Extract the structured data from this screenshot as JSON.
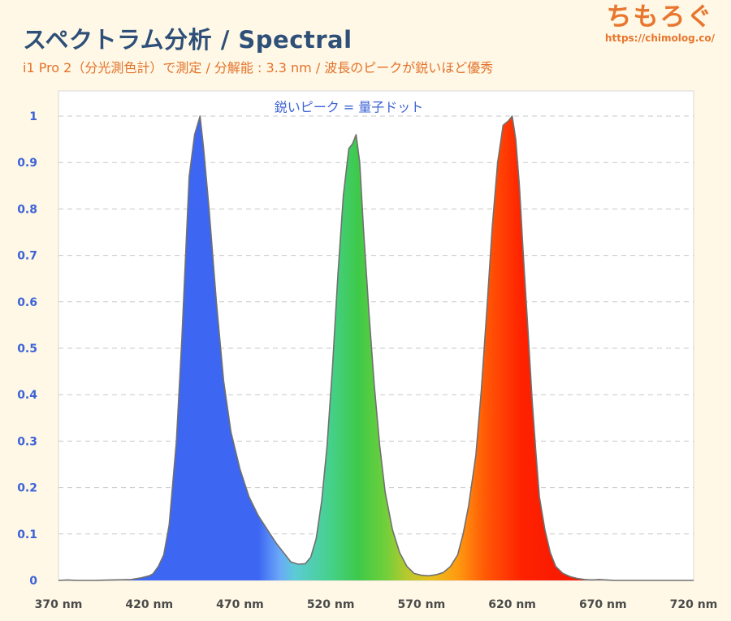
{
  "header": {
    "title": "スペクトラム分析 / Spectral",
    "subtitle": "i1 Pro 2（分光測色計）で測定 / 分解能 : 3.3 nm / 波長のピークが鋭いほど優秀"
  },
  "brand": {
    "logo_text": "ちもろぐ",
    "url": "https://chimolog.co/"
  },
  "chart_data": {
    "type": "area",
    "title": "",
    "xlabel": "",
    "ylabel": "",
    "xlim": [
      370,
      720
    ],
    "ylim": [
      0,
      1
    ],
    "grid": true,
    "grid_style": "dashed-horizontal",
    "legend": "none",
    "x_ticks": [
      370,
      420,
      470,
      520,
      570,
      620,
      670,
      720
    ],
    "x_tick_labels": [
      "370 nm",
      "420 nm",
      "470 nm",
      "520 nm",
      "570 nm",
      "620 nm",
      "670 nm",
      "720 nm"
    ],
    "y_ticks": [
      0,
      0.1,
      0.2,
      0.3,
      0.4,
      0.5,
      0.6,
      0.7,
      0.8,
      0.9,
      1
    ],
    "y_tick_labels": [
      "0",
      "0.1",
      "0.2",
      "0.3",
      "0.4",
      "0.5",
      "0.6",
      "0.7",
      "0.8",
      "0.9",
      "1"
    ],
    "annotation": {
      "text": "鋭いピーク = 量子ドット",
      "x": 530,
      "y": 1.02
    },
    "series": [
      {
        "x": [
          370,
          375,
          380,
          390,
          400,
          410,
          415,
          420,
          422,
          425,
          428,
          431,
          435,
          438,
          442,
          445,
          448,
          450,
          453,
          457,
          461,
          465,
          470,
          475,
          480,
          485,
          490,
          495,
          498,
          502,
          506,
          509,
          512,
          515,
          518,
          521,
          524,
          527,
          530,
          532,
          534,
          536,
          538,
          541,
          544,
          547,
          550,
          554,
          558,
          562,
          566,
          570,
          574,
          578,
          582,
          586,
          590,
          593,
          596,
          600,
          603,
          606,
          609,
          612,
          615,
          618,
          620,
          622,
          624,
          626,
          629,
          631,
          633,
          635,
          638,
          641,
          644,
          648,
          652,
          656,
          660,
          664,
          668,
          672,
          676,
          680,
          685,
          690,
          695,
          700,
          705,
          710,
          715,
          720
        ],
        "y": [
          0,
          0.001,
          0,
          0,
          0.001,
          0.002,
          0.005,
          0.01,
          0.014,
          0.03,
          0.055,
          0.12,
          0.3,
          0.52,
          0.87,
          0.96,
          1.0,
          0.93,
          0.8,
          0.6,
          0.43,
          0.32,
          0.24,
          0.18,
          0.14,
          0.11,
          0.08,
          0.055,
          0.04,
          0.035,
          0.036,
          0.05,
          0.09,
          0.17,
          0.29,
          0.46,
          0.66,
          0.83,
          0.93,
          0.94,
          0.96,
          0.9,
          0.76,
          0.58,
          0.42,
          0.29,
          0.19,
          0.11,
          0.06,
          0.03,
          0.015,
          0.011,
          0.01,
          0.012,
          0.017,
          0.03,
          0.055,
          0.1,
          0.16,
          0.27,
          0.41,
          0.58,
          0.76,
          0.9,
          0.98,
          0.99,
          1.0,
          0.95,
          0.85,
          0.71,
          0.52,
          0.39,
          0.28,
          0.18,
          0.11,
          0.06,
          0.03,
          0.015,
          0.008,
          0.004,
          0.002,
          0.001,
          0.002,
          0.001,
          0,
          0,
          0,
          0,
          0,
          0,
          0,
          0,
          0,
          0
        ]
      }
    ],
    "fill_gradient": [
      {
        "x": 370,
        "color": "#3d66f2"
      },
      {
        "x": 480,
        "color": "#3d66f2"
      },
      {
        "x": 492,
        "color": "#6aa8f8"
      },
      {
        "x": 500,
        "color": "#5ccbd6"
      },
      {
        "x": 520,
        "color": "#45d18a"
      },
      {
        "x": 535,
        "color": "#3ec94a"
      },
      {
        "x": 550,
        "color": "#6fcf3a"
      },
      {
        "x": 562,
        "color": "#b7c92e"
      },
      {
        "x": 575,
        "color": "#e8c01c"
      },
      {
        "x": 590,
        "color": "#ff9a10"
      },
      {
        "x": 605,
        "color": "#ff5a06"
      },
      {
        "x": 625,
        "color": "#ff2200"
      },
      {
        "x": 720,
        "color": "#e60000"
      }
    ],
    "outline_color": "#707070",
    "plot_background": "#ffffff",
    "grid_color": "#c8c8c8"
  }
}
